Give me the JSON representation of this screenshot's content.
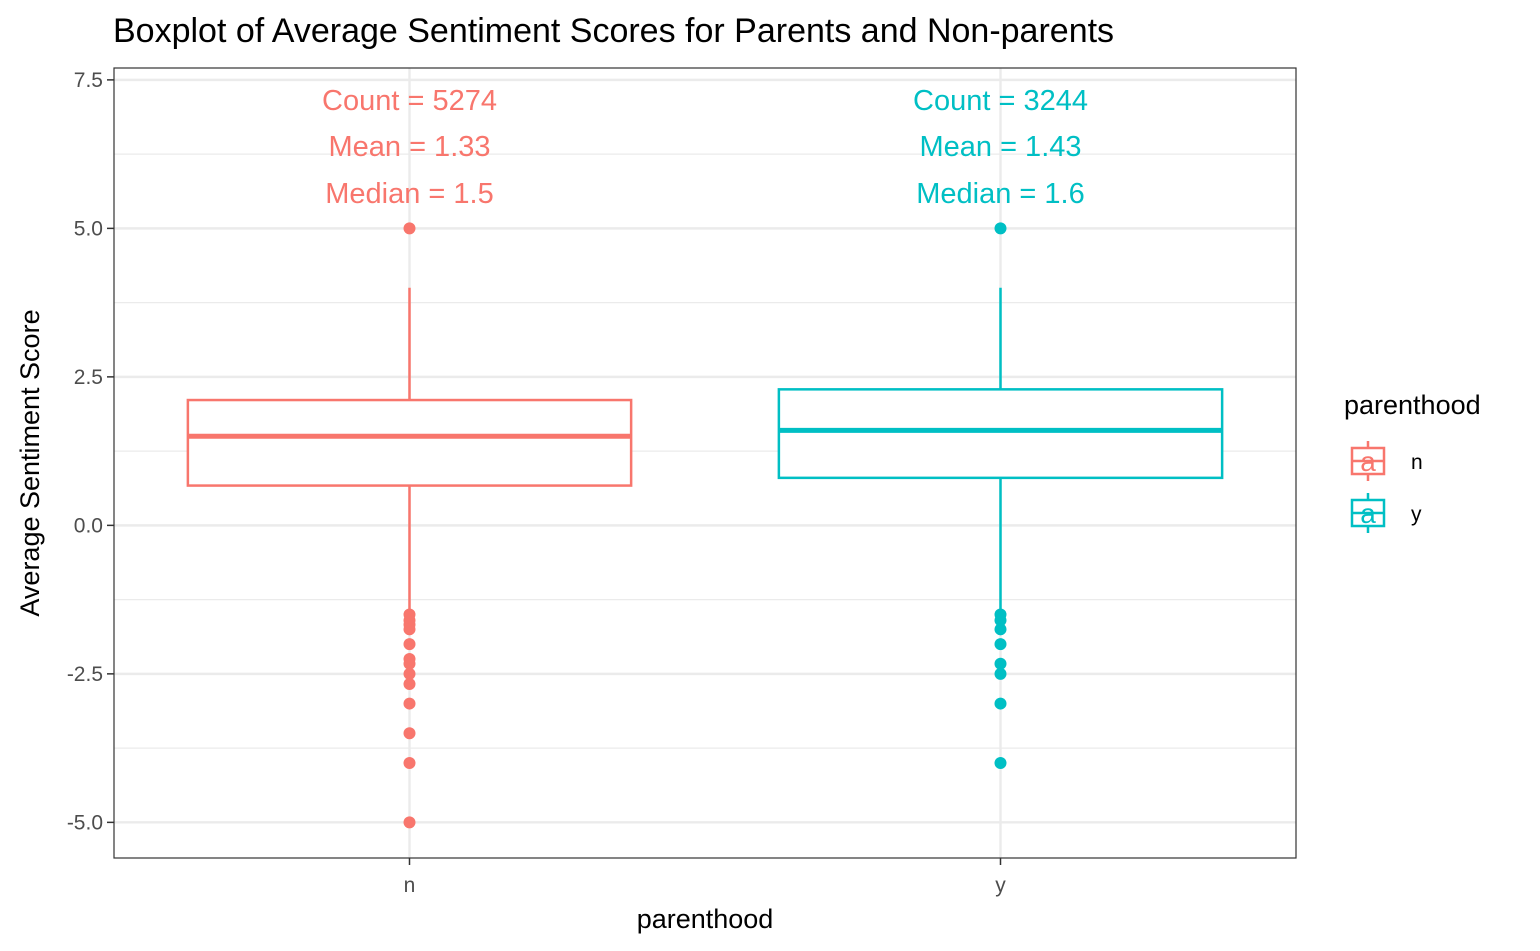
{
  "chart_data": {
    "type": "boxplot",
    "title": "Boxplot of Average Sentiment Scores for Parents and Non-parents",
    "xlabel": "parenthood",
    "ylabel": "Average Sentiment Score",
    "ylim": [
      -5.6,
      7.7
    ],
    "yticks": [
      -5.0,
      -2.5,
      0.0,
      2.5,
      5.0,
      7.5
    ],
    "ytick_labels": [
      "-5.0",
      "-2.5",
      "0.0",
      "2.5",
      "5.0",
      "7.5"
    ],
    "grid": true,
    "legend": {
      "title": "parenthood",
      "placement": "right",
      "key_glyph": "a",
      "entries": [
        "n",
        "y"
      ]
    },
    "categories": [
      "n",
      "y"
    ],
    "groups": [
      {
        "category": "n",
        "color": "#F8766D",
        "q1": 0.67,
        "median": 1.5,
        "q3": 2.11,
        "whisker_low": -1.5,
        "whisker_high": 4.0,
        "outliers": [
          5.0,
          -1.5,
          -1.6,
          -1.67,
          -1.75,
          -2.0,
          -2.25,
          -2.33,
          -2.5,
          -2.67,
          -3.0,
          -3.5,
          -4.0,
          -5.0
        ],
        "annotations": [
          "Count = 5274",
          "Mean = 1.33",
          "Median = 1.5"
        ]
      },
      {
        "category": "y",
        "color": "#00BFC4",
        "q1": 0.8,
        "median": 1.6,
        "q3": 2.29,
        "whisker_low": -1.5,
        "whisker_high": 4.0,
        "outliers": [
          5.0,
          -1.5,
          -1.6,
          -1.75,
          -2.0,
          -2.33,
          -2.5,
          -3.0,
          -4.0
        ],
        "annotations": [
          "Count = 3244",
          "Mean = 1.43",
          "Median = 1.6"
        ]
      }
    ]
  }
}
